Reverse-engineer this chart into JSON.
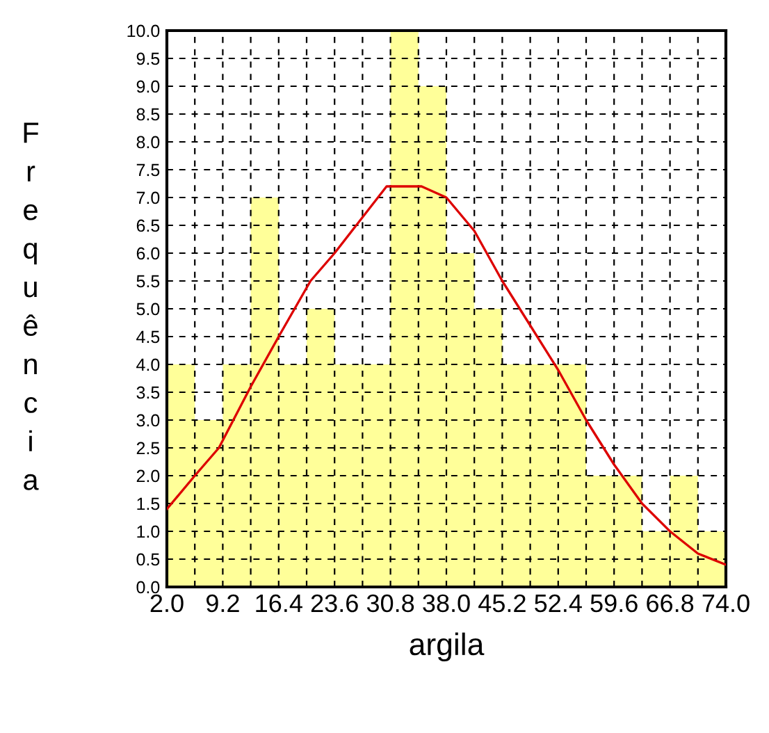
{
  "chart_data": {
    "type": "histogram",
    "xlabel": "argila",
    "ylabel": "Frequência",
    "bins": [
      2.0,
      5.6,
      9.2,
      12.8,
      16.4,
      20.0,
      23.6,
      27.2,
      30.8,
      34.4,
      38.0,
      41.6,
      45.2,
      48.8,
      52.4,
      56.0,
      59.6,
      63.2,
      66.8,
      70.4,
      74.0
    ],
    "values": [
      4,
      3,
      4,
      7,
      4,
      5,
      4,
      4,
      10,
      9,
      6,
      5,
      4,
      4,
      4,
      2,
      2,
      1,
      2,
      1
    ],
    "color": "#ffff99",
    "series": [
      {
        "type": "line",
        "color": "#dd0000",
        "x": [
          2.0,
          5.6,
          8.7,
          12.8,
          16.4,
          20.5,
          23.6,
          30.3,
          34.8,
          38.0,
          41.6,
          45.2,
          48.8,
          52.4,
          56.0,
          59.6,
          63.2,
          66.8,
          70.4,
          74.0
        ],
        "values": [
          1.4,
          2.0,
          2.5,
          3.6,
          4.5,
          5.5,
          6.0,
          7.2,
          7.2,
          7.0,
          6.4,
          5.5,
          4.7,
          3.9,
          3.0,
          2.2,
          1.5,
          1.0,
          0.6,
          0.4
        ]
      }
    ],
    "xlim": [
      2.0,
      74.0
    ],
    "ylim": [
      0,
      10
    ],
    "xticks": [
      {
        "value": 2.0,
        "label": "2.0"
      },
      {
        "value": 5.6,
        "label": null
      },
      9.2,
      {
        "value": 12.8,
        "label": null
      },
      16.4,
      {
        "value": 20.0,
        "label": null
      },
      23.6,
      {
        "value": 27.2,
        "label": null
      },
      30.8,
      {
        "value": 34.4,
        "label": null
      },
      {
        "value": 38.0,
        "label": "38.0"
      },
      {
        "value": 41.6,
        "label": null
      },
      45.2,
      {
        "value": 48.8,
        "label": null
      },
      52.4,
      {
        "value": 56.0,
        "label": null
      },
      59.6,
      {
        "value": 63.2,
        "label": null
      },
      66.8,
      {
        "value": 70.4,
        "label": null
      },
      {
        "value": 74.0,
        "label": "74.0"
      }
    ],
    "yticks": [
      {
        "value": 0,
        "label": "0.0"
      },
      {
        "value": 0.5,
        "label": "0.5"
      },
      {
        "value": 1,
        "label": "1.0"
      },
      {
        "value": 1.5,
        "label": "1.5"
      },
      {
        "value": 2,
        "label": "2.0"
      },
      {
        "value": 2.5,
        "label": "2.5"
      },
      {
        "value": 3,
        "label": "3.0"
      },
      {
        "value": 3.5,
        "label": "3.5"
      },
      {
        "value": 4,
        "label": "4.0"
      },
      {
        "value": 4.5,
        "label": "4.5"
      },
      {
        "value": 5,
        "label": "5.0"
      },
      {
        "value": 5.5,
        "label": "5.5"
      },
      {
        "value": 6,
        "label": "6.0"
      },
      {
        "value": 6.5,
        "label": "6.5"
      },
      {
        "value": 7,
        "label": "7.0"
      },
      {
        "value": 7.5,
        "label": "7.5"
      },
      {
        "value": 8,
        "label": "8.0"
      },
      {
        "value": 8.5,
        "label": "8.5"
      },
      {
        "value": 9,
        "label": "9.0"
      },
      {
        "value": 9.5,
        "label": "9.5"
      },
      {
        "value": 10,
        "label": "10.0"
      }
    ],
    "grid": true,
    "line_style": "solid"
  }
}
